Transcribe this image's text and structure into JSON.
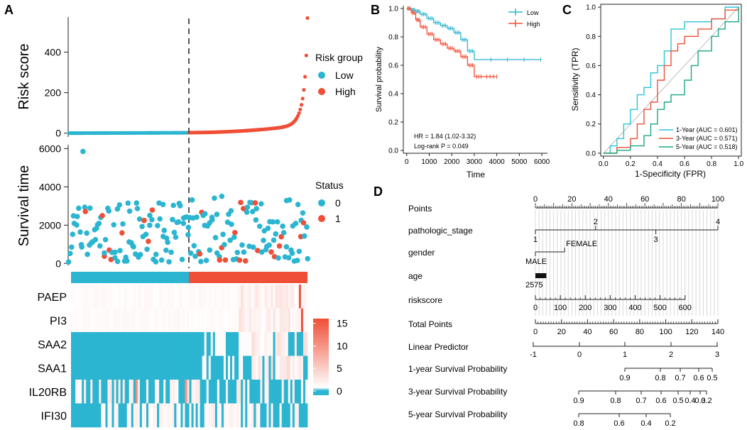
{
  "colors": {
    "low": "#2bb5d1",
    "high": "#ef4e37",
    "gray": "#555555",
    "heat_low": "#2bb5d1",
    "heat_mid": "#ffffff",
    "heat_high": "#ef4e37"
  },
  "chart_data": [
    {
      "id": "A1",
      "panel": "A",
      "type": "scatter",
      "ylabel": "Risk score",
      "yticks": [
        0,
        200,
        400
      ],
      "ylim": [
        -15,
        580
      ],
      "legend_title": "Risk group",
      "legend": [
        "Low",
        "High"
      ],
      "n_patients": 200,
      "cutoff_index": 99,
      "series": [
        {
          "name": "Low",
          "values": [
            0,
            0,
            0,
            0,
            0,
            0,
            1,
            1,
            1,
            2
          ]
        },
        {
          "name": "High",
          "values": [
            3,
            5,
            8,
            12,
            20,
            35,
            60,
            120,
            200,
            320,
            560
          ]
        }
      ]
    },
    {
      "id": "A2",
      "panel": "A",
      "type": "scatter",
      "ylabel": "Survival time",
      "yticks": [
        0,
        2000,
        4000,
        6000
      ],
      "ylim": [
        -100,
        6200
      ],
      "legend_title": "Status",
      "legend": [
        "0",
        "1"
      ],
      "outlier": {
        "index": 12,
        "value": 5850
      }
    },
    {
      "id": "A3",
      "panel": "A",
      "type": "heatmap",
      "rows": [
        "PAEP",
        "PI3",
        "SAA2",
        "SAA1",
        "IL20RB",
        "IFI30"
      ],
      "colorbar_ticks": [
        0,
        5,
        10,
        15
      ],
      "colorbar_range": [
        0,
        17
      ]
    },
    {
      "id": "B",
      "panel": "B",
      "type": "line",
      "xlabel": "Time",
      "ylabel": "Survival probability",
      "xlim": [
        -150,
        6250
      ],
      "ylim": [
        -0.02,
        1.02
      ],
      "xticks": [
        0,
        1000,
        2000,
        3000,
        4000,
        5000,
        6000
      ],
      "yticks": [
        0.0,
        0.2,
        0.4,
        0.6,
        0.8,
        1.0
      ],
      "legend": [
        "Low",
        "High"
      ],
      "series": [
        {
          "name": "Low",
          "x": [
            0,
            200,
            400,
            600,
            900,
            1200,
            1500,
            1800,
            2100,
            2400,
            2700,
            3000,
            5950
          ],
          "y": [
            1.0,
            0.99,
            0.98,
            0.96,
            0.93,
            0.9,
            0.88,
            0.86,
            0.83,
            0.78,
            0.7,
            0.64,
            0.64
          ]
        },
        {
          "name": "High",
          "x": [
            0,
            200,
            400,
            600,
            900,
            1200,
            1500,
            1800,
            2100,
            2400,
            2700,
            3000,
            3400,
            4000
          ],
          "y": [
            1.0,
            0.97,
            0.92,
            0.87,
            0.82,
            0.78,
            0.75,
            0.72,
            0.7,
            0.66,
            0.6,
            0.52,
            0.52,
            0.52
          ]
        }
      ],
      "annotations": [
        "HR = 1.84 (1.02-3.32)",
        "Log-rank P = 0.049"
      ]
    },
    {
      "id": "C",
      "panel": "C",
      "type": "line",
      "xlabel": "1-Specificity (FPR)",
      "ylabel": "Sensitivity (TPR)",
      "xlim": [
        -0.02,
        1.02
      ],
      "ylim": [
        -0.02,
        1.02
      ],
      "xticks": [
        0.0,
        0.2,
        0.4,
        0.6,
        0.8,
        1.0
      ],
      "yticks": [
        0.0,
        0.2,
        0.4,
        0.6,
        0.8,
        1.0
      ],
      "series": [
        {
          "name": "1-Year (AUC = 0.601)",
          "x": [
            0,
            0.05,
            0.1,
            0.15,
            0.2,
            0.25,
            0.3,
            0.35,
            0.4,
            0.45,
            0.5,
            0.55,
            0.6,
            0.7,
            0.8,
            0.9,
            1.0
          ],
          "y": [
            0,
            0.05,
            0.1,
            0.2,
            0.3,
            0.4,
            0.45,
            0.55,
            0.6,
            0.7,
            0.85,
            0.85,
            0.9,
            0.9,
            0.92,
            1.0,
            1.0
          ]
        },
        {
          "name": "3-Year (AUC = 0.571)",
          "x": [
            0,
            0.1,
            0.2,
            0.25,
            0.3,
            0.35,
            0.4,
            0.45,
            0.5,
            0.55,
            0.6,
            0.7,
            0.8,
            0.9,
            1.0
          ],
          "y": [
            0,
            0.04,
            0.1,
            0.2,
            0.3,
            0.35,
            0.5,
            0.6,
            0.7,
            0.75,
            0.8,
            0.85,
            0.92,
            0.98,
            1.0
          ]
        },
        {
          "name": "5-Year (AUC = 0.518)",
          "x": [
            0,
            0.1,
            0.2,
            0.3,
            0.35,
            0.4,
            0.45,
            0.5,
            0.6,
            0.65,
            0.7,
            0.8,
            0.85,
            0.9,
            1.0
          ],
          "y": [
            0,
            0.02,
            0.05,
            0.12,
            0.2,
            0.3,
            0.35,
            0.4,
            0.5,
            0.6,
            0.7,
            0.8,
            0.85,
            0.9,
            1.0
          ]
        }
      ]
    },
    {
      "id": "D",
      "panel": "D",
      "type": "nomogram",
      "rows": [
        {
          "label": "Points",
          "ticks": [
            "0",
            "20",
            "40",
            "60",
            "80",
            "100"
          ],
          "range": [
            0,
            100
          ],
          "minor": 1,
          "tick_side": "up"
        },
        {
          "label": "pathologic_stage",
          "ticks_up": [
            {
              "t": "2",
              "v": 33
            },
            {
              "t": "4",
              "v": 100
            }
          ],
          "ticks_down": [
            {
              "t": "1",
              "v": 0
            },
            {
              "t": "3",
              "v": 66
            }
          ]
        },
        {
          "label": "gender",
          "ticks_up": [
            {
              "t": "FEMALE",
              "v": 16
            }
          ],
          "ticks_down": [
            {
              "t": "MALE",
              "v": 0
            }
          ]
        },
        {
          "label": "age",
          "ticks_down": [
            {
              "t": "2575",
              "v": 0
            }
          ],
          "bar": [
            0,
            6
          ]
        },
        {
          "label": "riskscore",
          "ticks": [
            "0",
            "100",
            "200",
            "300",
            "400",
            "500",
            "600"
          ],
          "range": [
            0,
            600
          ],
          "axis_end": 82
        },
        {
          "label": "Total Points",
          "ticks": [
            "0",
            "20",
            "40",
            "60",
            "80",
            "100",
            "120",
            "140"
          ],
          "range": [
            0,
            140
          ]
        },
        {
          "label": "Linear Predictor",
          "ticks": [
            "-1",
            "0",
            "1",
            "2",
            "3"
          ]
        },
        {
          "label": "1-year Survival Probability",
          "ticks": [
            "0.9",
            "0.8",
            "0.7",
            "0.6",
            "0.5"
          ]
        },
        {
          "label": "3-year Survival Probability",
          "ticks": [
            "0.9",
            "0.8",
            "0.7",
            "0.6",
            "0.5",
            "0.4",
            "0.3",
            "0.2"
          ]
        },
        {
          "label": "5-year Survival Probability",
          "ticks": [
            "0.8",
            "0.6",
            "0.4",
            "0.2"
          ]
        }
      ]
    }
  ],
  "panel_labels": [
    "A",
    "B",
    "C",
    "D"
  ]
}
